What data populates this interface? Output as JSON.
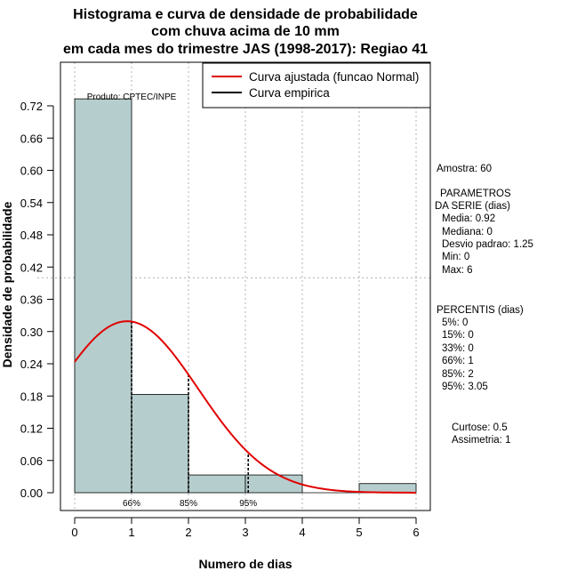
{
  "chart_data": {
    "type": "bar",
    "title_lines": [
      "Histograma e curva de densidade de probabilidade",
      "com chuva acima de 10 mm",
      "em cada mes do trimestre JAS (1998-2017): Regiao 41"
    ],
    "xlabel": "Numero de dias",
    "ylabel": "Densidade de probabilidade",
    "xlim": [
      0,
      6
    ],
    "ylim": [
      0,
      0.78
    ],
    "x_ticks": [
      "0",
      "1",
      "2",
      "3",
      "4",
      "5",
      "6"
    ],
    "y_ticks": [
      "0.00",
      "0.06",
      "0.12",
      "0.18",
      "0.24",
      "0.30",
      "0.36",
      "0.42",
      "0.48",
      "0.54",
      "0.60",
      "0.66",
      "0.72"
    ],
    "bins": [
      {
        "from": 0,
        "to": 1,
        "density": 0.733
      },
      {
        "from": 1,
        "to": 2,
        "density": 0.183
      },
      {
        "from": 2,
        "to": 3,
        "density": 0.033
      },
      {
        "from": 3,
        "to": 4,
        "density": 0.033
      },
      {
        "from": 4,
        "to": 5,
        "density": 0.0
      },
      {
        "from": 5,
        "to": 6,
        "density": 0.017
      }
    ],
    "fitted_normal": {
      "mean": 0.92,
      "sd": 1.25
    },
    "percentile_markers": [
      {
        "label": "66%",
        "x": 1
      },
      {
        "label": "85%",
        "x": 2
      },
      {
        "label": "95%",
        "x": 3.05
      }
    ],
    "h_reference_line": 0.4,
    "legend": {
      "position": "top-right",
      "entries": [
        {
          "label": "Curva ajustada (funcao Normal)",
          "color": "#e00000"
        },
        {
          "label": "Curva empirica",
          "color": "#000000"
        }
      ]
    },
    "credit": "Produto: CPTEC/INPE"
  },
  "stats_panel": {
    "amostra": "Amostra: 60",
    "param_title_1": "PARAMETROS",
    "param_title_2": "DA SERIE (dias)",
    "media": "Media: 0.92",
    "mediana": "Mediana: 0",
    "desvio": "Desvio padrao: 1.25",
    "min": "Min: 0",
    "max": "Max: 6",
    "percentis_title": "PERCENTIS (dias)",
    "p5": "5%: 0",
    "p15": "15%: 0",
    "p33": "33%: 0",
    "p66": "66%: 1",
    "p85": "85%: 2",
    "p95": "95%: 3.05",
    "curtose": "Curtose: 0.5",
    "assimetria": "Assimetria: 1"
  },
  "colors": {
    "bar_fill": "#b5cdcd",
    "fit_curve": "#e00000",
    "grid": "#b0b0b0"
  }
}
